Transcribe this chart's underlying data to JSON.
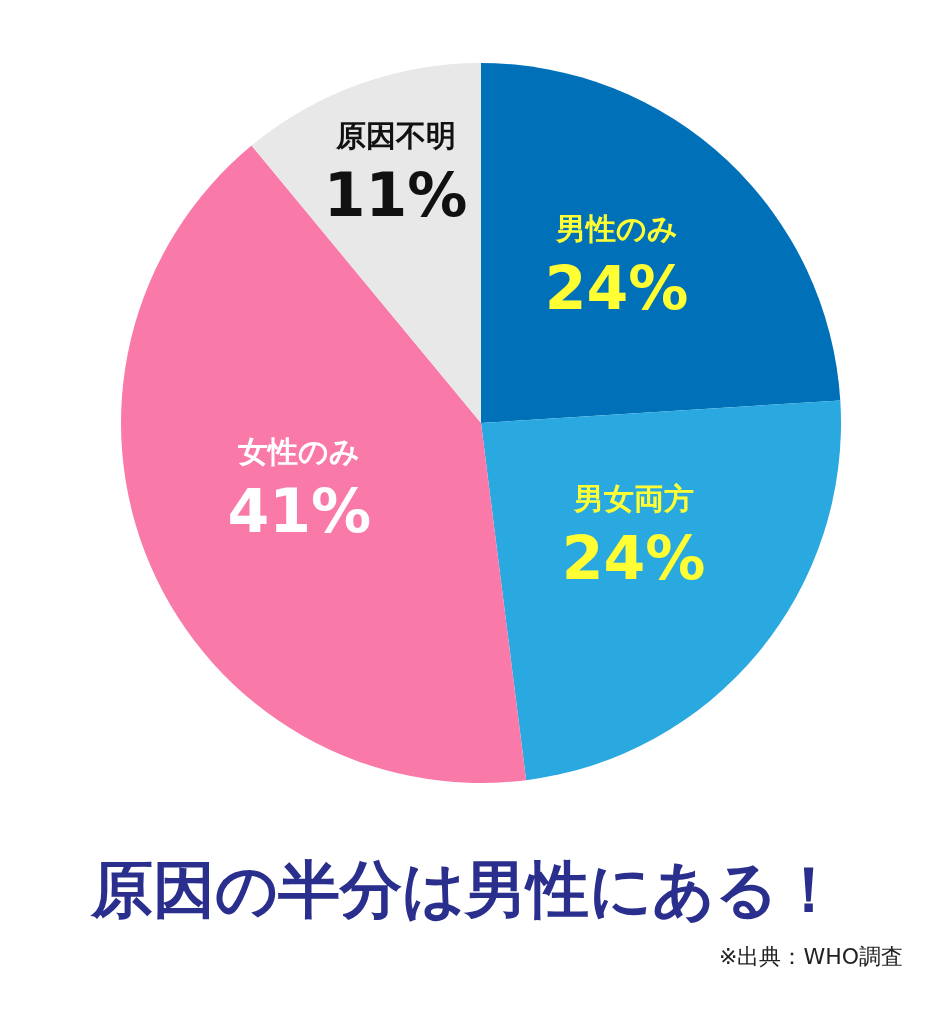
{
  "chart_data": {
    "type": "pie",
    "title": "原因の半分は男性にある！",
    "categories": [
      "男性のみ",
      "男女両方",
      "女性のみ",
      "原因不明"
    ],
    "values": [
      24,
      24,
      41,
      11
    ],
    "colors": [
      "#0071b9",
      "#2aa8e0",
      "#f97aa9",
      "#e8e8e8"
    ],
    "value_labels": [
      "24%",
      "24%",
      "41%",
      "11%"
    ],
    "annotations": [
      "※出典：WHO調査"
    ],
    "legend": false
  }
}
